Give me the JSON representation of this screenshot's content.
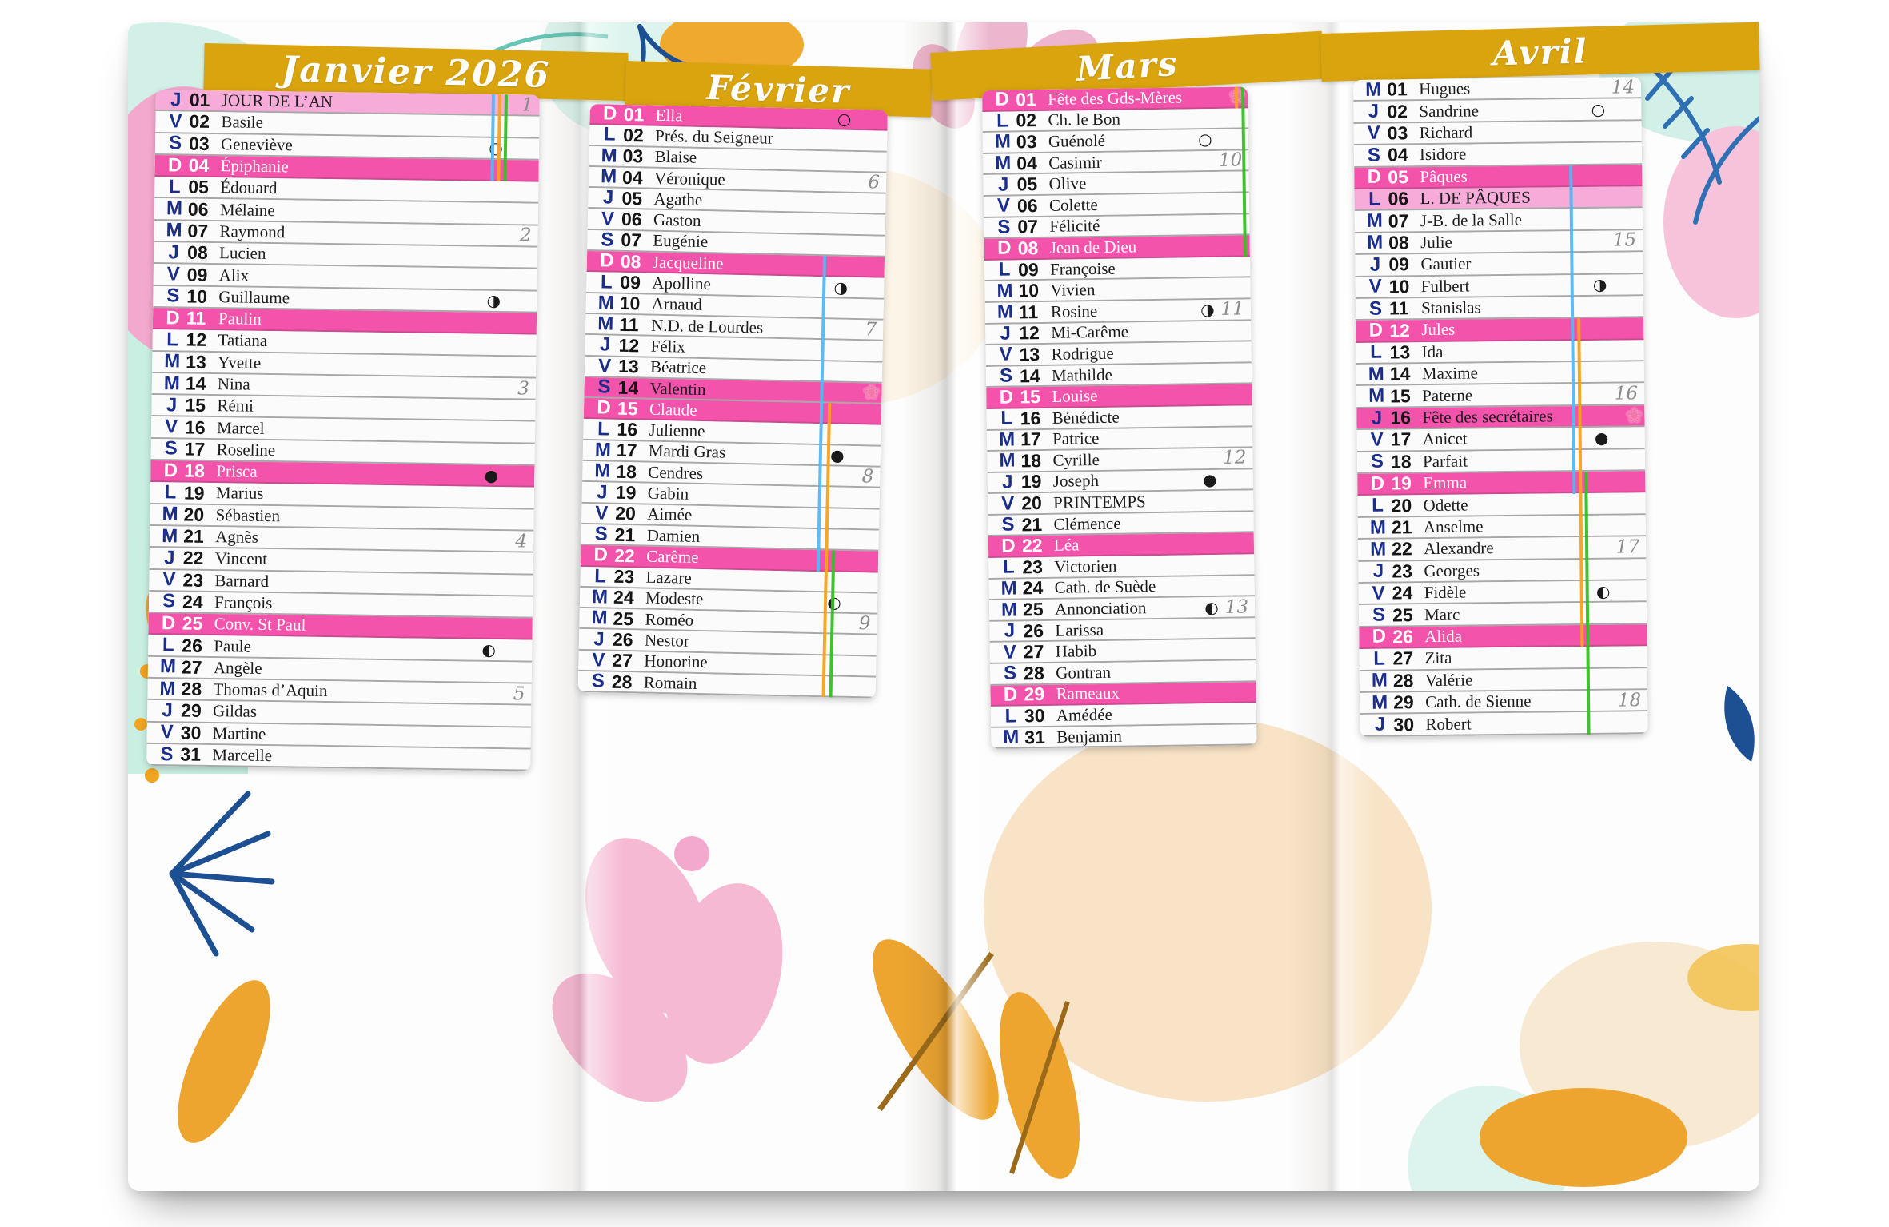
{
  "colors": {
    "band_gold": "#d9a40e",
    "sunday_pink": "#f453ab",
    "holiday_pink": "#f7abd9",
    "day_letter_navy": "#1b2e8c",
    "week_number_gray": "#8b8b8b",
    "flower_pink": "#f279a8",
    "ribbon_blue": "#54b7f4",
    "ribbon_orange": "#f5a21c",
    "ribbon_green": "#34c024"
  },
  "moon_glyphs": {
    "full": "○",
    "last": "◑",
    "new": "●",
    "first": "◐"
  },
  "months": [
    {
      "title": "Janvier 2026",
      "days": [
        {
          "l": "J",
          "n": "01",
          "name": "JOUR DE L’AN",
          "hl": "holiday",
          "week": "1"
        },
        {
          "l": "V",
          "n": "02",
          "name": "Basile"
        },
        {
          "l": "S",
          "n": "03",
          "name": "Geneviève",
          "moon": "full"
        },
        {
          "l": "D",
          "n": "04",
          "name": "Épiphanie",
          "hl": "sunday"
        },
        {
          "l": "L",
          "n": "05",
          "name": "Édouard"
        },
        {
          "l": "M",
          "n": "06",
          "name": "Mélaine"
        },
        {
          "l": "M",
          "n": "07",
          "name": "Raymond",
          "week": "2"
        },
        {
          "l": "J",
          "n": "08",
          "name": "Lucien"
        },
        {
          "l": "V",
          "n": "09",
          "name": "Alix"
        },
        {
          "l": "S",
          "n": "10",
          "name": "Guillaume",
          "moon": "last"
        },
        {
          "l": "D",
          "n": "11",
          "name": "Paulin",
          "hl": "sunday"
        },
        {
          "l": "L",
          "n": "12",
          "name": "Tatiana"
        },
        {
          "l": "M",
          "n": "13",
          "name": "Yvette"
        },
        {
          "l": "M",
          "n": "14",
          "name": "Nina",
          "week": "3"
        },
        {
          "l": "J",
          "n": "15",
          "name": "Rémi"
        },
        {
          "l": "V",
          "n": "16",
          "name": "Marcel"
        },
        {
          "l": "S",
          "n": "17",
          "name": "Roseline"
        },
        {
          "l": "D",
          "n": "18",
          "name": "Prisca",
          "hl": "sunday",
          "moon": "new"
        },
        {
          "l": "L",
          "n": "19",
          "name": "Marius"
        },
        {
          "l": "M",
          "n": "20",
          "name": "Sébastien"
        },
        {
          "l": "M",
          "n": "21",
          "name": "Agnès",
          "week": "4"
        },
        {
          "l": "J",
          "n": "22",
          "name": "Vincent"
        },
        {
          "l": "V",
          "n": "23",
          "name": "Barnard"
        },
        {
          "l": "S",
          "n": "24",
          "name": "François"
        },
        {
          "l": "D",
          "n": "25",
          "name": "Conv. St Paul",
          "hl": "sunday"
        },
        {
          "l": "L",
          "n": "26",
          "name": "Paule",
          "moon": "first"
        },
        {
          "l": "M",
          "n": "27",
          "name": "Angèle"
        },
        {
          "l": "M",
          "n": "28",
          "name": "Thomas d’Aquin",
          "week": "5"
        },
        {
          "l": "J",
          "n": "29",
          "name": "Gildas"
        },
        {
          "l": "V",
          "n": "30",
          "name": "Martine"
        },
        {
          "l": "S",
          "n": "31",
          "name": "Marcelle"
        }
      ]
    },
    {
      "title": "Février",
      "days": [
        {
          "l": "D",
          "n": "01",
          "name": "Ella",
          "hl": "sunday",
          "moon": "full"
        },
        {
          "l": "L",
          "n": "02",
          "name": "Prés. du Seigneur"
        },
        {
          "l": "M",
          "n": "03",
          "name": "Blaise"
        },
        {
          "l": "M",
          "n": "04",
          "name": "Véronique",
          "week": "6"
        },
        {
          "l": "J",
          "n": "05",
          "name": "Agathe"
        },
        {
          "l": "V",
          "n": "06",
          "name": "Gaston"
        },
        {
          "l": "S",
          "n": "07",
          "name": "Eugénie"
        },
        {
          "l": "D",
          "n": "08",
          "name": "Jacqueline",
          "hl": "sunday"
        },
        {
          "l": "L",
          "n": "09",
          "name": "Apolline",
          "moon": "last"
        },
        {
          "l": "M",
          "n": "10",
          "name": "Arnaud"
        },
        {
          "l": "M",
          "n": "11",
          "name": "N.D. de Lourdes",
          "week": "7"
        },
        {
          "l": "J",
          "n": "12",
          "name": "Félix"
        },
        {
          "l": "V",
          "n": "13",
          "name": "Béatrice"
        },
        {
          "l": "S",
          "n": "14",
          "name": "Valentin",
          "hl": "special",
          "flower": true
        },
        {
          "l": "D",
          "n": "15",
          "name": "Claude",
          "hl": "sunday"
        },
        {
          "l": "L",
          "n": "16",
          "name": "Julienne"
        },
        {
          "l": "M",
          "n": "17",
          "name": "Mardi Gras",
          "moon": "new"
        },
        {
          "l": "M",
          "n": "18",
          "name": "Cendres",
          "week": "8"
        },
        {
          "l": "J",
          "n": "19",
          "name": "Gabin"
        },
        {
          "l": "V",
          "n": "20",
          "name": "Aimée"
        },
        {
          "l": "S",
          "n": "21",
          "name": "Damien"
        },
        {
          "l": "D",
          "n": "22",
          "name": "Carême",
          "hl": "sunday"
        },
        {
          "l": "L",
          "n": "23",
          "name": "Lazare"
        },
        {
          "l": "M",
          "n": "24",
          "name": "Modeste",
          "moon": "first"
        },
        {
          "l": "M",
          "n": "25",
          "name": "Roméo",
          "week": "9"
        },
        {
          "l": "J",
          "n": "26",
          "name": "Nestor"
        },
        {
          "l": "V",
          "n": "27",
          "name": "Honorine"
        },
        {
          "l": "S",
          "n": "28",
          "name": "Romain"
        }
      ]
    },
    {
      "title": "Mars",
      "days": [
        {
          "l": "D",
          "n": "01",
          "name": "Fête des Gds-Mères",
          "hl": "sunday",
          "flower": true
        },
        {
          "l": "L",
          "n": "02",
          "name": "Ch. le Bon"
        },
        {
          "l": "M",
          "n": "03",
          "name": "Guénolé",
          "moon": "full"
        },
        {
          "l": "M",
          "n": "04",
          "name": "Casimir",
          "week": "10"
        },
        {
          "l": "J",
          "n": "05",
          "name": "Olive"
        },
        {
          "l": "V",
          "n": "06",
          "name": "Colette"
        },
        {
          "l": "S",
          "n": "07",
          "name": "Félicité"
        },
        {
          "l": "D",
          "n": "08",
          "name": "Jean de Dieu",
          "hl": "sunday"
        },
        {
          "l": "L",
          "n": "09",
          "name": "Françoise"
        },
        {
          "l": "M",
          "n": "10",
          "name": "Vivien"
        },
        {
          "l": "M",
          "n": "11",
          "name": "Rosine",
          "moon": "last",
          "week": "11"
        },
        {
          "l": "J",
          "n": "12",
          "name": "Mi-Carême"
        },
        {
          "l": "V",
          "n": "13",
          "name": "Rodrigue"
        },
        {
          "l": "S",
          "n": "14",
          "name": "Mathilde"
        },
        {
          "l": "D",
          "n": "15",
          "name": "Louise",
          "hl": "sunday"
        },
        {
          "l": "L",
          "n": "16",
          "name": "Bénédicte"
        },
        {
          "l": "M",
          "n": "17",
          "name": "Patrice"
        },
        {
          "l": "M",
          "n": "18",
          "name": "Cyrille",
          "week": "12"
        },
        {
          "l": "J",
          "n": "19",
          "name": "Joseph",
          "moon": "new"
        },
        {
          "l": "V",
          "n": "20",
          "name": "PRINTEMPS"
        },
        {
          "l": "S",
          "n": "21",
          "name": "Clémence"
        },
        {
          "l": "D",
          "n": "22",
          "name": "Léa",
          "hl": "sunday"
        },
        {
          "l": "L",
          "n": "23",
          "name": "Victorien"
        },
        {
          "l": "M",
          "n": "24",
          "name": "Cath. de Suède"
        },
        {
          "l": "M",
          "n": "25",
          "name": "Annonciation",
          "moon": "first",
          "week": "13"
        },
        {
          "l": "J",
          "n": "26",
          "name": "Larissa"
        },
        {
          "l": "V",
          "n": "27",
          "name": "Habib"
        },
        {
          "l": "S",
          "n": "28",
          "name": "Gontran"
        },
        {
          "l": "D",
          "n": "29",
          "name": "Rameaux",
          "hl": "sunday"
        },
        {
          "l": "L",
          "n": "30",
          "name": "Amédée"
        },
        {
          "l": "M",
          "n": "31",
          "name": "Benjamin"
        }
      ]
    },
    {
      "title": "Avril",
      "days": [
        {
          "l": "M",
          "n": "01",
          "name": "Hugues",
          "week": "14"
        },
        {
          "l": "J",
          "n": "02",
          "name": "Sandrine",
          "moon": "full"
        },
        {
          "l": "V",
          "n": "03",
          "name": "Richard"
        },
        {
          "l": "S",
          "n": "04",
          "name": "Isidore"
        },
        {
          "l": "D",
          "n": "05",
          "name": "Pâques",
          "hl": "sunday"
        },
        {
          "l": "L",
          "n": "06",
          "name": "L. DE PÂQUES",
          "hl": "holiday"
        },
        {
          "l": "M",
          "n": "07",
          "name": "J-B. de la Salle"
        },
        {
          "l": "M",
          "n": "08",
          "name": "Julie",
          "week": "15"
        },
        {
          "l": "J",
          "n": "09",
          "name": "Gautier"
        },
        {
          "l": "V",
          "n": "10",
          "name": "Fulbert",
          "moon": "last"
        },
        {
          "l": "S",
          "n": "11",
          "name": "Stanislas"
        },
        {
          "l": "D",
          "n": "12",
          "name": "Jules",
          "hl": "sunday"
        },
        {
          "l": "L",
          "n": "13",
          "name": "Ida"
        },
        {
          "l": "M",
          "n": "14",
          "name": "Maxime"
        },
        {
          "l": "M",
          "n": "15",
          "name": "Paterne",
          "week": "16"
        },
        {
          "l": "J",
          "n": "16",
          "name": "Fête des secrétaires",
          "hl": "special",
          "flower": true
        },
        {
          "l": "V",
          "n": "17",
          "name": "Anicet",
          "moon": "new"
        },
        {
          "l": "S",
          "n": "18",
          "name": "Parfait"
        },
        {
          "l": "D",
          "n": "19",
          "name": "Emma",
          "hl": "sunday"
        },
        {
          "l": "L",
          "n": "20",
          "name": "Odette"
        },
        {
          "l": "M",
          "n": "21",
          "name": "Anselme"
        },
        {
          "l": "M",
          "n": "22",
          "name": "Alexandre",
          "week": "17"
        },
        {
          "l": "J",
          "n": "23",
          "name": "Georges"
        },
        {
          "l": "V",
          "n": "24",
          "name": "Fidèle",
          "moon": "first"
        },
        {
          "l": "S",
          "n": "25",
          "name": "Marc"
        },
        {
          "l": "D",
          "n": "26",
          "name": "Alida",
          "hl": "sunday"
        },
        {
          "l": "L",
          "n": "27",
          "name": "Zita"
        },
        {
          "l": "M",
          "n": "28",
          "name": "Valérie"
        },
        {
          "l": "M",
          "n": "29",
          "name": "Cath. de Sienne",
          "week": "18"
        },
        {
          "l": "J",
          "n": "30",
          "name": "Robert"
        }
      ]
    }
  ]
}
